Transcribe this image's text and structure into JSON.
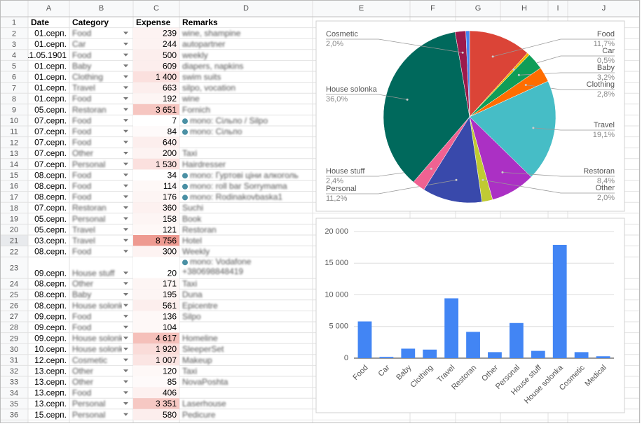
{
  "spreadsheet": {
    "column_headers": [
      "A",
      "B",
      "C",
      "D",
      "E",
      "F",
      "G",
      "H",
      "I",
      "J"
    ],
    "row_headers": [
      "1",
      "2",
      "3",
      "4",
      "5",
      "6",
      "7",
      "8",
      "9",
      "10",
      "11",
      "12",
      "13",
      "14",
      "15",
      "16",
      "17",
      "18",
      "19",
      "20",
      "21",
      "22",
      "23",
      "24",
      "25",
      "26",
      "27",
      "28",
      "29",
      "30",
      "31",
      "32",
      "33",
      "34",
      "35",
      "36"
    ],
    "header": [
      "Date",
      "Category",
      "Expense",
      "Remarks"
    ],
    "rows": [
      [
        "01.серп.",
        "Food",
        "239",
        "wine, shampine"
      ],
      [
        "01.серп.",
        "Car",
        "244",
        "autopartner"
      ],
      [
        "11.05.1901",
        "Food",
        "500",
        "weekly"
      ],
      [
        "01.серп.",
        "Baby",
        "609",
        "diapers, napkins"
      ],
      [
        "01.серп.",
        "Clothing",
        "1 400",
        "swim suits"
      ],
      [
        "01.серп.",
        "Travel",
        "663",
        "silpo, vocation"
      ],
      [
        "01.серп.",
        "Food",
        "192",
        "wine"
      ],
      [
        "05.серп.",
        "Restoran",
        "3 651",
        "Fornich"
      ],
      [
        "07.серп.",
        "Food",
        "7",
        "mono: Сільпо / Silpo"
      ],
      [
        "07.серп.",
        "Food",
        "84",
        "mono: Сільпо"
      ],
      [
        "07.серп.",
        "Food",
        "640",
        ""
      ],
      [
        "07.серп.",
        "Other",
        "200",
        "Taxi"
      ],
      [
        "07.серп.",
        "Personal",
        "1 530",
        "Hairdresser"
      ],
      [
        "08.серп.",
        "Food",
        "34",
        "mono: Гуртові ціни алкоголь"
      ],
      [
        "08.серп.",
        "Food",
        "114",
        "mono: roll bar Sorrymama"
      ],
      [
        "08.серп.",
        "Food",
        "176",
        "mono: Rodinakovbaska1"
      ],
      [
        "07.серп.",
        "Restoran",
        "360",
        "Suchi"
      ],
      [
        "05.серп.",
        "Personal",
        "158",
        "Book"
      ],
      [
        "05.серп.",
        "Travel",
        "121",
        "Restoran"
      ],
      [
        "03.серп.",
        "Travel",
        "8 756",
        "Hotel"
      ],
      [
        "08.серп.",
        "Food",
        "300",
        "Weekly"
      ],
      [
        "09.серп.",
        "House stuff",
        "20",
        "mono: Vodafone +380698848419"
      ],
      [
        "08.серп.",
        "Other",
        "171",
        "Taxi"
      ],
      [
        "08.серп.",
        "Baby",
        "195",
        "Duna"
      ],
      [
        "08.серп.",
        "House solonka",
        "561",
        "Epicentre"
      ],
      [
        "09.серп.",
        "Food",
        "136",
        "Silpo"
      ],
      [
        "09.серп.",
        "Food",
        "104",
        ""
      ],
      [
        "09.серп.",
        "House solonka",
        "4 617",
        "Homeline"
      ],
      [
        "10.серп.",
        "House solonka",
        "1 920",
        "SleeperSet"
      ],
      [
        "12.серп.",
        "Cosmetic",
        "1 007",
        "Makeup"
      ],
      [
        "13.серп.",
        "Other",
        "120",
        "Taxi"
      ],
      [
        "13.серп.",
        "Other",
        "85",
        "NovaPoshta"
      ],
      [
        "13.серп.",
        "Food",
        "406",
        ""
      ],
      [
        "13.серп.",
        "Personal",
        "3 351",
        "Laserhouse"
      ],
      [
        "15.серп.",
        "Personal",
        "580",
        "Pedicure"
      ]
    ],
    "expense_fills": [
      "#fdf3f2",
      "#fdf3f2",
      "#fceeed",
      "#fceeed",
      "#fbe0de",
      "#fceeed",
      "#fdf5f4",
      "#f6c6c1",
      "#ffffff",
      "#fefafa",
      "#fceeed",
      "#fdf3f2",
      "#fbe0de",
      "#ffffff",
      "#fef8f7",
      "#fdf5f4",
      "#fdf1f0",
      "#fdf5f4",
      "#fef8f7",
      "#ee9a91",
      "#fdf3f2",
      "#ffffff",
      "#fdf5f4",
      "#fdf5f4",
      "#fceeed",
      "#fef8f7",
      "#fef8f7",
      "#f5c0ba",
      "#fadcd9",
      "#fbe5e3",
      "#fef8f7",
      "#fefafa",
      "#fdf1f0",
      "#f6c8c3",
      "#fceeed"
    ]
  },
  "chart_data": [
    {
      "type": "pie",
      "categories": [
        "Food",
        "Car",
        "Baby",
        "Clothing",
        "Travel",
        "Restoran",
        "Other",
        "Personal",
        "House stuff",
        "House solonka",
        "Cosmetic",
        null
      ],
      "values": [
        11.7,
        0.5,
        3.2,
        2.8,
        19.1,
        8.4,
        2.0,
        11.2,
        2.4,
        36.0,
        2.0,
        0.7
      ],
      "value_labels": [
        "11,7%",
        "0,5%",
        "3,2%",
        "2,8%",
        "19,1%",
        "8,4%",
        "2,0%",
        "11,2%",
        "2,4%",
        "36,0%",
        "2,0%",
        null
      ],
      "colors": [
        "#db4437",
        "#f4b400",
        "#0f9d58",
        "#ff6d00",
        "#46bdc6",
        "#ab30c4",
        "#c0ca33",
        "#3949ab",
        "#f06292",
        "#00695c",
        "#9c1a4c",
        "#4285f4"
      ]
    },
    {
      "type": "bar",
      "categories": [
        "Food",
        "Car",
        "Baby",
        "Clothing",
        "Travel",
        "Restoran",
        "Other",
        "Personal",
        "House stuff",
        "House solonka",
        "Cosmetic",
        "Medical"
      ],
      "values": [
        5800,
        200,
        1500,
        1350,
        9450,
        4150,
        950,
        5550,
        1150,
        17900,
        950,
        300
      ],
      "color": "#4285f4",
      "ylim": [
        0,
        20000
      ],
      "yticks": [
        0,
        {
          "value": 5000,
          "label": "5 000"
        },
        {
          "value": 10000,
          "label": "10 000"
        },
        {
          "value": 15000,
          "label": "15 000"
        },
        {
          "value": 20000,
          "label": "20 000"
        }
      ],
      "grid": true
    }
  ]
}
